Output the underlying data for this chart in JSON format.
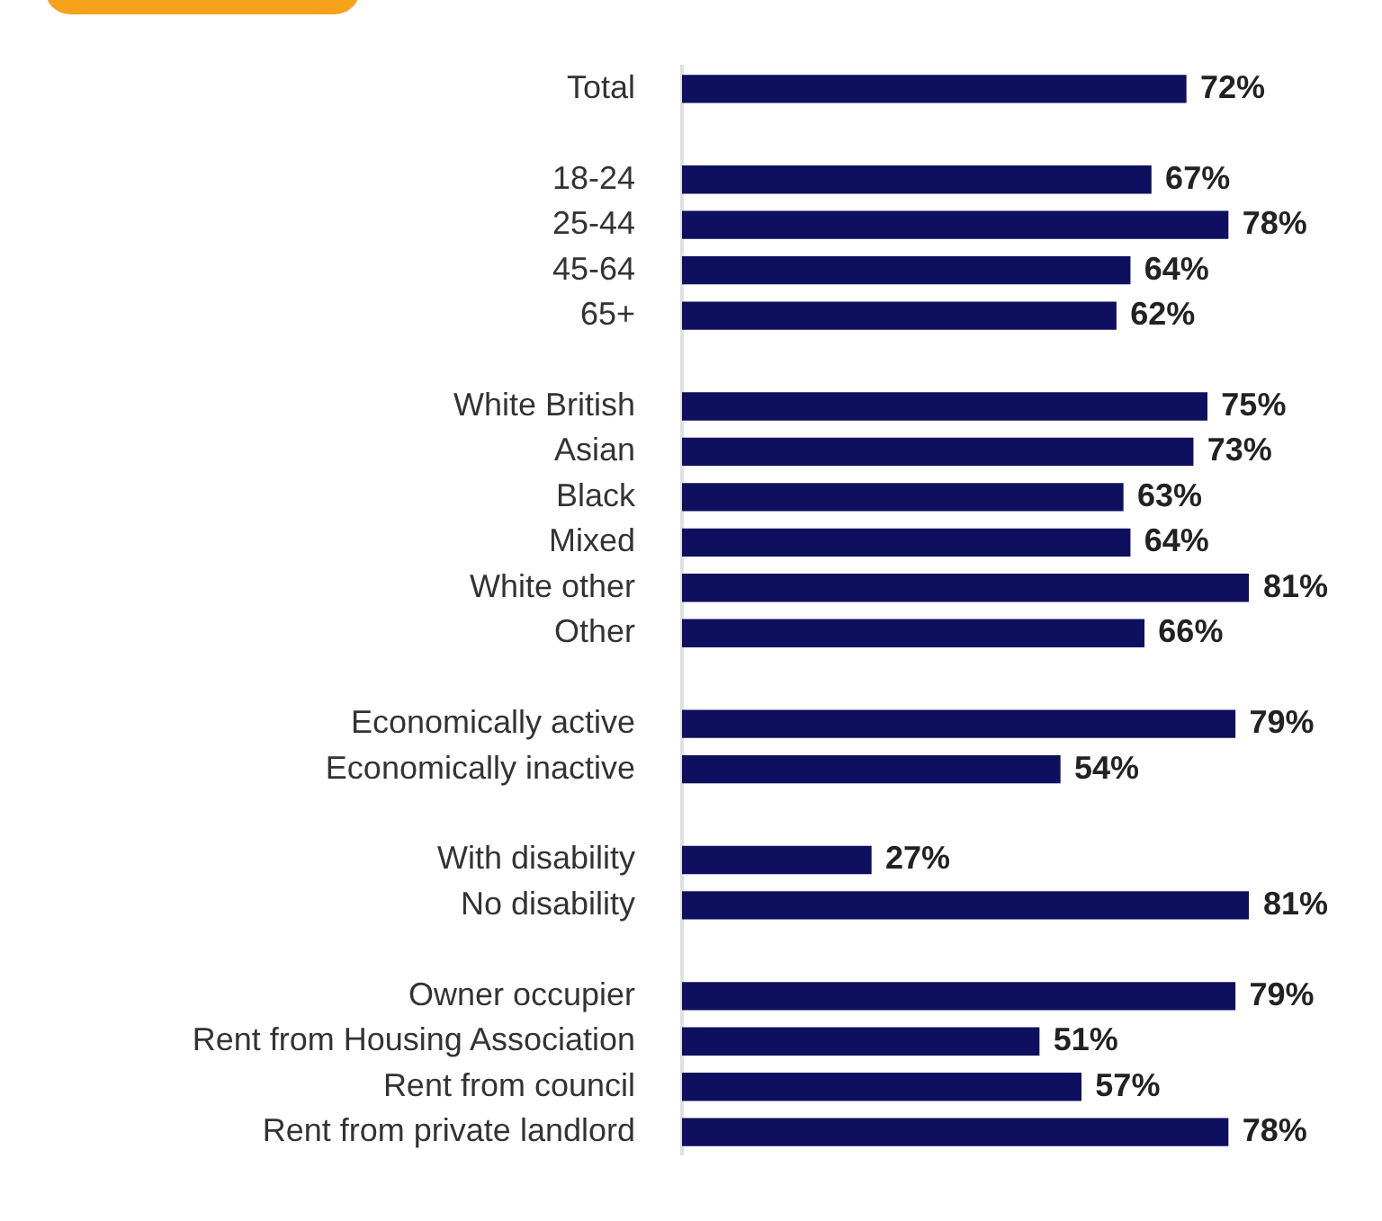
{
  "chart_data": {
    "type": "bar",
    "orientation": "horizontal",
    "categories": [
      "Total",
      null,
      "18-24",
      "25-44",
      "45-64",
      "65+",
      null,
      "White British",
      "Asian",
      "Black",
      "Mixed",
      "White other",
      "Other",
      null,
      "Economically active",
      "Economically inactive",
      null,
      "With disability",
      "No disability",
      null,
      "Owner occupier",
      "Rent from Housing Association",
      "Rent from council",
      "Rent from private landlord"
    ],
    "values": [
      72,
      null,
      67,
      78,
      64,
      62,
      null,
      75,
      73,
      63,
      64,
      81,
      66,
      null,
      79,
      54,
      null,
      27,
      81,
      null,
      79,
      51,
      57,
      78
    ],
    "value_labels": [
      "72%",
      null,
      "67%",
      "78%",
      "64%",
      "62%",
      null,
      "75%",
      "73%",
      "63%",
      "64%",
      "81%",
      "66%",
      null,
      "79%",
      "54%",
      null,
      "27%",
      "81%",
      null,
      "79%",
      "51%",
      "57%",
      "78%"
    ],
    "color": "#0f0f5f",
    "tick_labels": "y"
  }
}
